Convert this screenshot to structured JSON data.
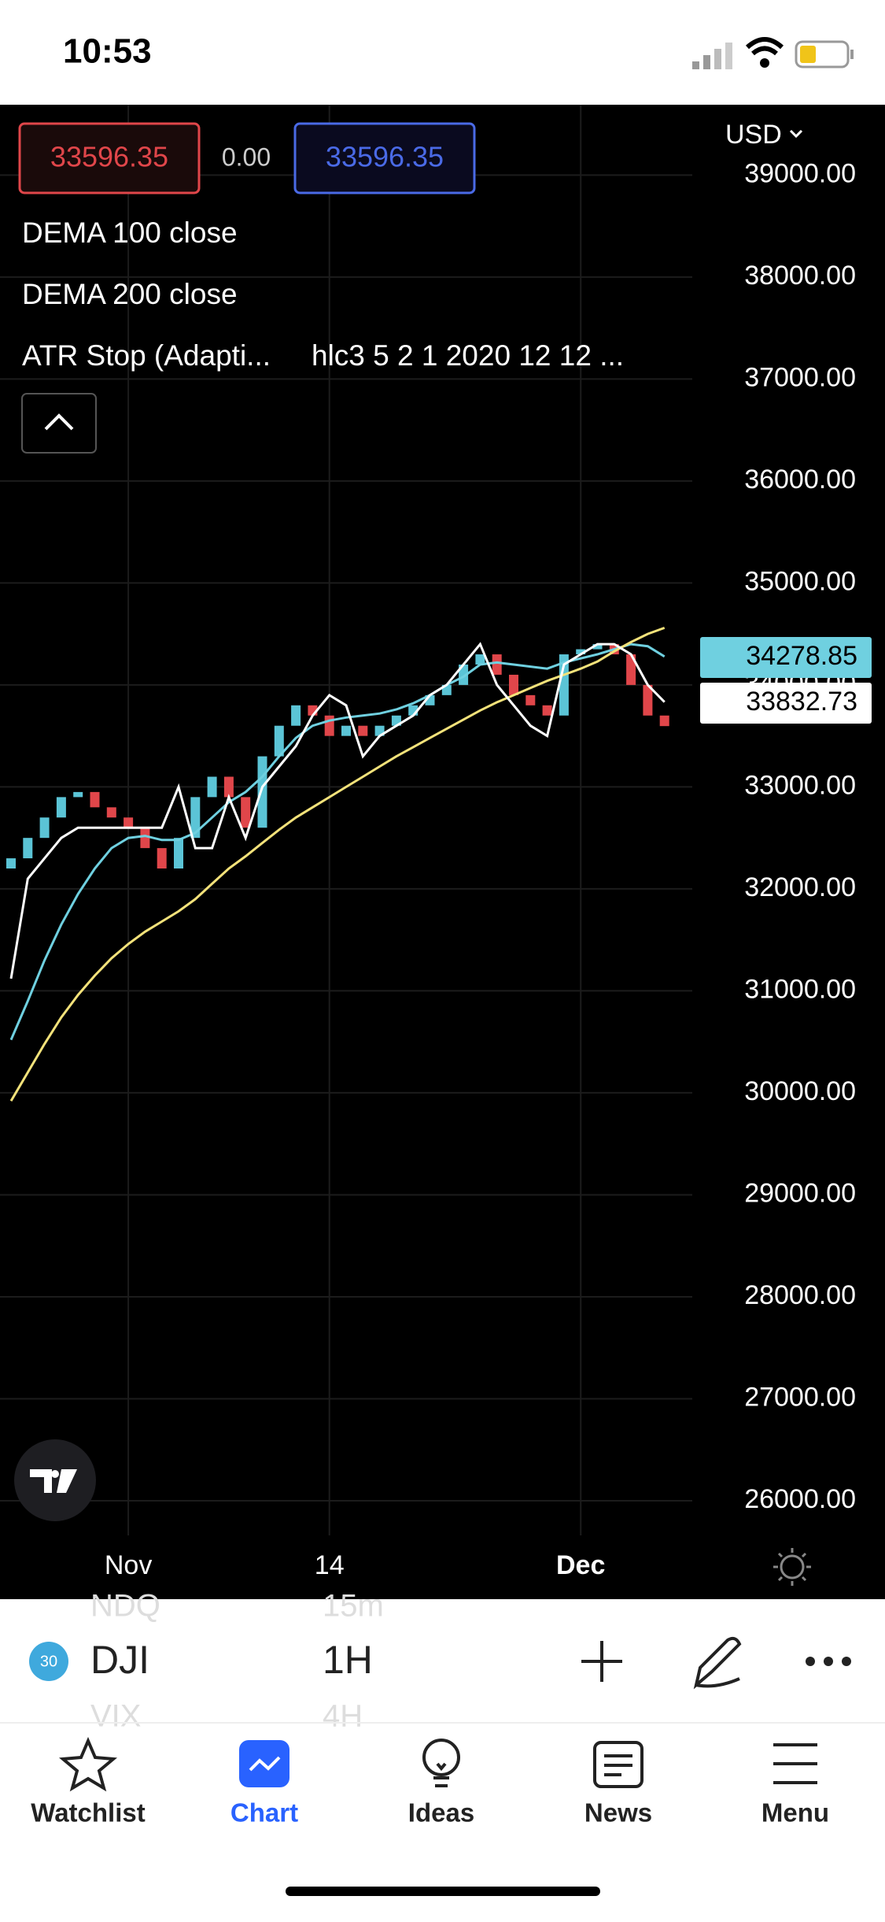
{
  "status_bar": {
    "time": "10:53"
  },
  "legend": {
    "price_left_change": "0.00",
    "atr_params": "hlc3 5 2 1 2020 12 12 ...",
    "currency": "USD"
  },
  "chart_data": {
    "type": "candlestick",
    "categories": [
      null,
      null,
      null,
      null,
      null,
      null,
      null,
      "Nov",
      null,
      null,
      null,
      null,
      null,
      null,
      null,
      null,
      null,
      null,
      null,
      "14",
      null,
      null,
      null,
      null,
      null,
      null,
      null,
      null,
      null,
      null,
      null,
      null,
      null,
      null,
      "Dec",
      null,
      null,
      null,
      null,
      null
    ],
    "open": [
      32200,
      32300,
      32500,
      32700,
      32900,
      32950,
      32800,
      32700,
      32600,
      32400,
      32200,
      32500,
      32900,
      33100,
      32900,
      32600,
      33300,
      33600,
      33800,
      33700,
      33500,
      33600,
      33500,
      33600,
      33700,
      33800,
      33900,
      34000,
      34200,
      34300,
      34100,
      33900,
      33800,
      33700,
      34300,
      34350,
      34400,
      34300,
      34000,
      33700
    ],
    "close": [
      32300,
      32500,
      32700,
      32900,
      32950,
      32800,
      32700,
      32600,
      32400,
      32200,
      32500,
      32900,
      33100,
      32900,
      32600,
      33300,
      33600,
      33800,
      33700,
      33500,
      33600,
      33500,
      33600,
      33700,
      33800,
      33900,
      34000,
      34200,
      34300,
      34100,
      33900,
      33800,
      33700,
      34300,
      34350,
      34400,
      34300,
      34000,
      33700,
      33596.35
    ],
    "up_color": "#5bc4d6",
    "down_color": "#e0464a",
    "series": [
      {
        "name": "DEMA 100 close",
        "color": "#6fd0e0",
        "values": [
          30520,
          30900,
          31300,
          31650,
          31950,
          32200,
          32400,
          32500,
          32520,
          32480,
          32480,
          32550,
          32700,
          32850,
          32950,
          33100,
          33300,
          33480,
          33600,
          33650,
          33680,
          33700,
          33720,
          33760,
          33820,
          33900,
          34000,
          34080,
          34200,
          34220,
          34200,
          34180,
          34160,
          34220,
          34260,
          34300,
          34350,
          34400,
          34380,
          34278.85
        ]
      },
      {
        "name": "DEMA 200 close",
        "color": "#f3e27a",
        "values": [
          29920,
          30200,
          30480,
          30740,
          30960,
          31150,
          31320,
          31460,
          31580,
          31680,
          31780,
          31900,
          32050,
          32200,
          32320,
          32450,
          32580,
          32700,
          32800,
          32900,
          33000,
          33100,
          33200,
          33300,
          33390,
          33480,
          33570,
          33660,
          33750,
          33830,
          33900,
          33970,
          34040,
          34100,
          34160,
          34230,
          34330,
          34420,
          34500,
          34560
        ]
      },
      {
        "name": "ATR Stop (Adapti...",
        "color": "#ffffff",
        "values": [
          31120,
          32100,
          32300,
          32500,
          32600,
          32600,
          32600,
          32600,
          32600,
          32600,
          33000,
          32400,
          32400,
          32900,
          32500,
          33000,
          33200,
          33400,
          33700,
          33900,
          33800,
          33300,
          33500,
          33600,
          33700,
          33900,
          34000,
          34200,
          34400,
          34000,
          33800,
          33600,
          33500,
          34200,
          34300,
          34400,
          34400,
          34300,
          34000,
          33832.73
        ]
      }
    ],
    "ylim": [
      25660,
      39690
    ],
    "yticks": [
      {
        "value": 26000,
        "label": "26000.00"
      },
      {
        "value": 27000,
        "label": "27000.00"
      },
      {
        "value": 28000,
        "label": "28000.00"
      },
      {
        "value": 29000,
        "label": "29000.00"
      },
      {
        "value": 30000,
        "label": "30000.00"
      },
      {
        "value": 31000,
        "label": "31000.00"
      },
      {
        "value": 32000,
        "label": "32000.00"
      },
      {
        "value": 33000,
        "label": "33000.00"
      },
      {
        "value": 34000,
        "label": "34000.00"
      },
      {
        "value": 35000,
        "label": "35000.00"
      },
      {
        "value": 36000,
        "label": "36000.00"
      },
      {
        "value": 37000,
        "label": "37000.00"
      },
      {
        "value": 38000,
        "label": "38000.00"
      },
      {
        "value": 39000,
        "label": "39000.00"
      }
    ],
    "grid": true
  },
  "toolbar": {
    "badge": "30",
    "symbol": "DJI",
    "symbol_prev": "NDQ",
    "symbol_next": "VIX",
    "interval": "1H",
    "interval_prev": "15m",
    "interval_next": "4H"
  },
  "tabs": [
    "Watchlist",
    "Chart",
    "Ideas",
    "News",
    "Menu"
  ]
}
